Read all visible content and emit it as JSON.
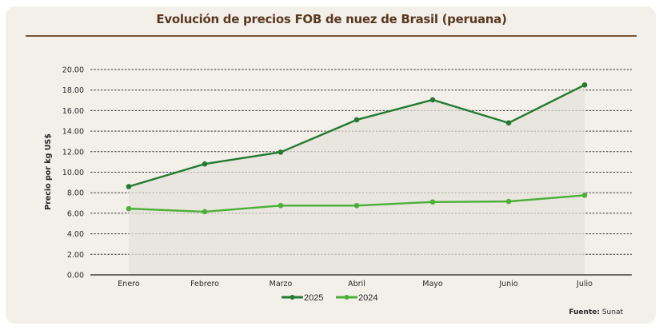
{
  "chart_data": {
    "type": "line",
    "title": "Evolución de precios FOB de nuez de Brasil (peruana)",
    "xlabel": "",
    "ylabel": "Precio por kg US$",
    "ylim": [
      0,
      20
    ],
    "yticks": [
      "0.00",
      "2.00",
      "4.00",
      "6.00",
      "8.00",
      "10.00",
      "12.00",
      "14.00",
      "16.00",
      "18.00",
      "20.00"
    ],
    "categories": [
      "Enero",
      "Febrero",
      "Marzo",
      "Abril",
      "Mayo",
      "Junio",
      "Julio"
    ],
    "grid": true,
    "legend_position": "bottom",
    "series": [
      {
        "name": "2025",
        "color": "#237a32",
        "values": [
          8.6,
          10.8,
          11.95,
          15.1,
          17.05,
          14.8,
          18.5
        ]
      },
      {
        "name": "2024",
        "color": "#4caf3a",
        "values": [
          6.45,
          6.15,
          6.75,
          6.75,
          7.1,
          7.15,
          7.75
        ]
      }
    ],
    "area_fill_color": "#e3e2d8"
  },
  "source": {
    "label": "Fuente:",
    "value": "Sunat"
  }
}
